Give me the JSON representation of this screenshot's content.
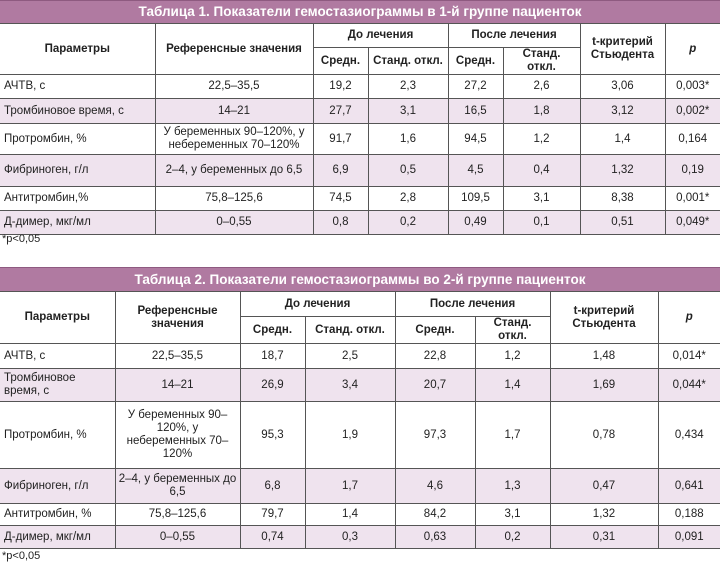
{
  "header_labels": {
    "params": "Параметры",
    "ref": "Референсные значения",
    "before": "До лечения",
    "after": "После лечения",
    "mean": "Средн.",
    "sd": "Станд. откл.",
    "t": "t-критерий Стьюдента",
    "p": "p"
  },
  "table1": {
    "title": "Таблица 1. Показатели гемостазиограммы в 1-й группе пациенток",
    "rows": [
      [
        "АЧТВ, с",
        "22,5–35,5",
        "19,2",
        "2,3",
        "27,2",
        "2,6",
        "3,06",
        "0,003*"
      ],
      [
        "Тромбиновое время, с",
        "14–21",
        "27,7",
        "3,1",
        "16,5",
        "1,8",
        "3,12",
        "0,002*"
      ],
      [
        "Протромбин, %",
        "У беременных 90–120%, у небеременных 70–120%",
        "91,7",
        "1,6",
        "94,5",
        "1,2",
        "1,4",
        "0,164"
      ],
      [
        "Фибриноген, г/л",
        "2–4, у беременных до 6,5",
        "6,9",
        "0,5",
        "4,5",
        "0,4",
        "1,32",
        "0,19"
      ],
      [
        "Антитромбин,%",
        "75,8–125,6",
        "74,5",
        "2,8",
        "109,5",
        "3,1",
        "8,38",
        "0,001*"
      ],
      [
        "Д-димер, мкг/мл",
        "0–0,55",
        "0,8",
        "0,2",
        "0,49",
        "0,1",
        "0,51",
        "0,049*"
      ]
    ],
    "footnote": "*p<0,05"
  },
  "table2": {
    "title": "Таблица 2. Показатели гемостазиограммы во 2-й группе пациенток",
    "rows": [
      [
        "АЧТВ, с",
        "22,5–35,5",
        "18,7",
        "2,5",
        "22,8",
        "1,2",
        "1,48",
        "0,014*"
      ],
      [
        "Тромбиновое время, с",
        "14–21",
        "26,9",
        "3,4",
        "20,7",
        "1,4",
        "1,69",
        "0,044*"
      ],
      [
        "Протромбин, %",
        "У беременных 90–120%, у небеременных 70–120%",
        "95,3",
        "1,9",
        "97,3",
        "1,7",
        "0,78",
        "0,434"
      ],
      [
        "Фибриноген, г/л",
        "2–4, у беременных до 6,5",
        "6,8",
        "1,7",
        "4,6",
        "1,3",
        "0,47",
        "0,641"
      ],
      [
        "Антитромбин, %",
        "75,8–125,6",
        "79,7",
        "1,4",
        "84,2",
        "3,1",
        "1,32",
        "0,188"
      ],
      [
        "Д-димер, мкг/мл",
        "0–0,55",
        "0,74",
        "0,3",
        "0,63",
        "0,2",
        "0,31",
        "0,091"
      ]
    ],
    "footnote": "*p<0,05"
  },
  "colors": {
    "title_bg": "#b07aa1",
    "alt_row": "#efe3ee"
  }
}
